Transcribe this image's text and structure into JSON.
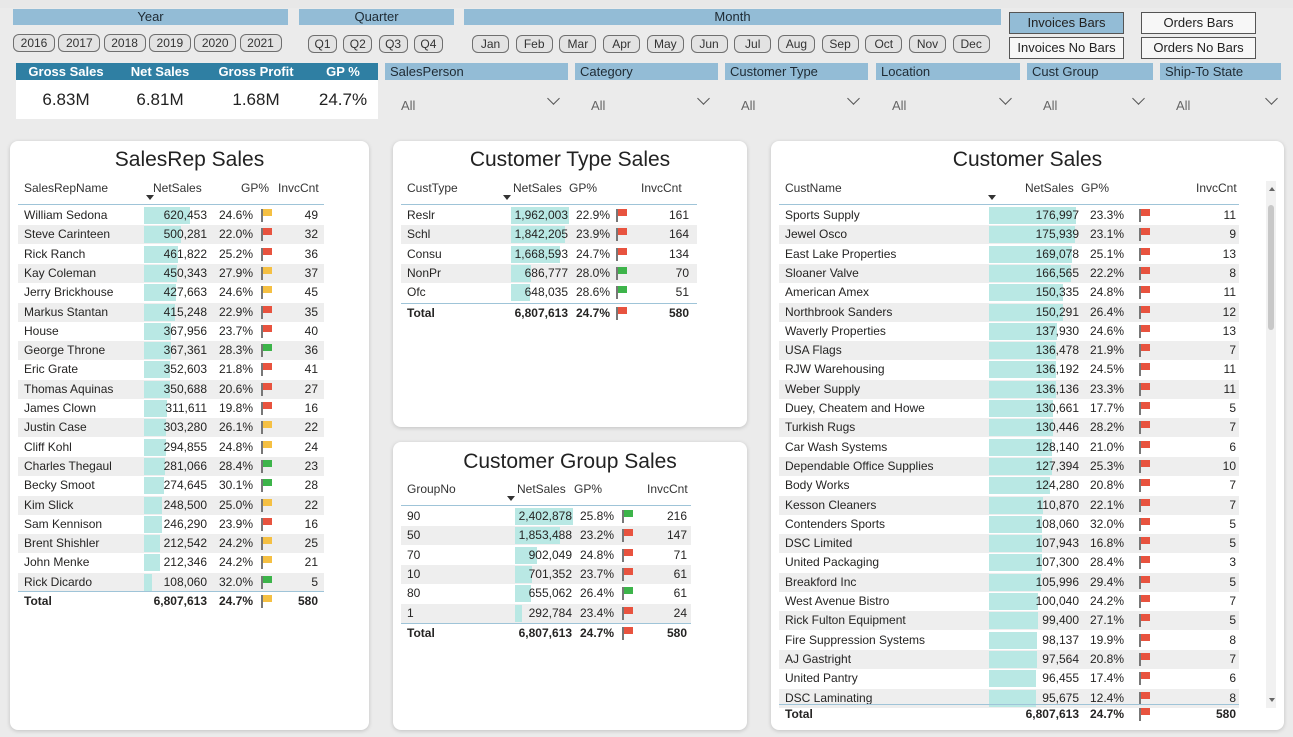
{
  "colors": {
    "green": "#3db44a",
    "yellow": "#f5c043",
    "red": "#e8533f",
    "bar": "#b9e8e4",
    "accent": "#2f7fa3"
  },
  "slicers": {
    "year": {
      "label": "Year",
      "items": [
        "2016",
        "2017",
        "2018",
        "2019",
        "2020",
        "2021"
      ]
    },
    "quarter": {
      "label": "Quarter",
      "items": [
        "Q1",
        "Q2",
        "Q3",
        "Q4"
      ]
    },
    "month": {
      "label": "Month",
      "items": [
        "Jan",
        "Feb",
        "Mar",
        "Apr",
        "May",
        "Jun",
        "Jul",
        "Aug",
        "Sep",
        "Oct",
        "Nov",
        "Dec"
      ]
    }
  },
  "toggles": {
    "invoices_bars": "Invoices Bars",
    "invoices_no_bars": "Invoices No Bars",
    "orders_bars": "Orders Bars",
    "orders_no_bars": "Orders No Bars"
  },
  "kpi": {
    "headers": [
      "Gross Sales",
      "Net Sales",
      "Gross Profit",
      "GP %"
    ],
    "values": [
      "6.83M",
      "6.81M",
      "1.68M",
      "24.7%"
    ]
  },
  "dropdowns": [
    {
      "label": "SalesPerson",
      "value": "All"
    },
    {
      "label": "Category",
      "value": "All"
    },
    {
      "label": "Customer Type",
      "value": "All"
    },
    {
      "label": "Location",
      "value": "All"
    },
    {
      "label": "Cust Group",
      "value": "All"
    },
    {
      "label": "Ship-To State",
      "value": "All"
    }
  ],
  "salesrep": {
    "title": "SalesRep Sales",
    "headers": [
      "SalesRepName",
      "NetSales",
      "GP%",
      "InvcCnt"
    ],
    "rows": [
      [
        "William Sedona",
        "620,453",
        "24.6%",
        "yellow",
        "49",
        620453
      ],
      [
        "Steve Carinteen",
        "500,281",
        "22.0%",
        "red",
        "32",
        500281
      ],
      [
        "Rick Ranch",
        "461,822",
        "25.2%",
        "red",
        "36",
        461822
      ],
      [
        "Kay Coleman",
        "450,343",
        "27.9%",
        "yellow",
        "37",
        450343
      ],
      [
        "Jerry Brickhouse",
        "427,663",
        "24.6%",
        "yellow",
        "45",
        427663
      ],
      [
        "Markus Stantan",
        "415,248",
        "22.9%",
        "red",
        "35",
        415248
      ],
      [
        "House",
        "367,956",
        "23.7%",
        "red",
        "40",
        367956
      ],
      [
        "George Throne",
        "367,361",
        "28.3%",
        "green",
        "36",
        367361
      ],
      [
        "Eric Grate",
        "352,603",
        "21.8%",
        "red",
        "41",
        352603
      ],
      [
        "Thomas Aquinas",
        "350,688",
        "20.6%",
        "red",
        "27",
        350688
      ],
      [
        "James Clown",
        "311,611",
        "19.8%",
        "red",
        "16",
        311611
      ],
      [
        "Justin Case",
        "303,280",
        "26.1%",
        "yellow",
        "22",
        303280
      ],
      [
        "Cliff Kohl",
        "294,855",
        "24.8%",
        "yellow",
        "24",
        294855
      ],
      [
        "Charles Thegaul",
        "281,066",
        "28.4%",
        "green",
        "23",
        281066
      ],
      [
        "Becky Smoot",
        "274,645",
        "30.1%",
        "green",
        "28",
        274645
      ],
      [
        "Kim Slick",
        "248,500",
        "25.0%",
        "yellow",
        "22",
        248500
      ],
      [
        "Sam Kennison",
        "246,290",
        "23.9%",
        "red",
        "16",
        246290
      ],
      [
        "Brent Shishler",
        "212,542",
        "24.2%",
        "yellow",
        "25",
        212542
      ],
      [
        "John Menke",
        "212,346",
        "24.2%",
        "yellow",
        "21",
        212346
      ],
      [
        "Rick Dicardo",
        "108,060",
        "32.0%",
        "green",
        "5",
        108060
      ]
    ],
    "total": [
      "Total",
      "6,807,613",
      "24.7%",
      "yellow",
      "580"
    ]
  },
  "custtype": {
    "title": "Customer Type Sales",
    "headers": [
      "CustType",
      "NetSales",
      "GP%",
      "InvcCnt"
    ],
    "rows": [
      [
        "Reslr",
        "1,962,003",
        "22.9%",
        "red",
        "161",
        1962003
      ],
      [
        "Schl",
        "1,842,205",
        "23.9%",
        "red",
        "164",
        1842205
      ],
      [
        "Consu",
        "1,668,593",
        "24.7%",
        "red",
        "134",
        1668593
      ],
      [
        "NonPr",
        "686,777",
        "28.0%",
        "green",
        "70",
        686777
      ],
      [
        "Ofc",
        "648,035",
        "28.6%",
        "green",
        "51",
        648035
      ]
    ],
    "total": [
      "Total",
      "6,807,613",
      "24.7%",
      "red",
      "580"
    ]
  },
  "custgroup": {
    "title": "Customer Group Sales",
    "headers": [
      "GroupNo",
      "NetSales",
      "GP%",
      "InvcCnt"
    ],
    "rows": [
      [
        "90",
        "2,402,878",
        "25.8%",
        "green",
        "216",
        2402878
      ],
      [
        "50",
        "1,853,488",
        "23.2%",
        "red",
        "147",
        1853488
      ],
      [
        "70",
        "902,049",
        "24.8%",
        "red",
        "71",
        902049
      ],
      [
        "10",
        "701,352",
        "23.7%",
        "red",
        "61",
        701352
      ],
      [
        "80",
        "655,062",
        "26.4%",
        "green",
        "61",
        655062
      ],
      [
        "1",
        "292,784",
        "23.4%",
        "red",
        "24",
        292784
      ]
    ],
    "total": [
      "Total",
      "6,807,613",
      "24.7%",
      "red",
      "580"
    ]
  },
  "customer": {
    "title": "Customer Sales",
    "headers": [
      "CustName",
      "NetSales",
      "GP%",
      "InvcCnt"
    ],
    "rows": [
      [
        "Sports Supply",
        "176,997",
        "23.3%",
        "red",
        "11",
        176997
      ],
      [
        "Jewel Osco",
        "175,939",
        "23.1%",
        "red",
        "9",
        175939
      ],
      [
        "East Lake Properties",
        "169,078",
        "25.1%",
        "red",
        "13",
        169078
      ],
      [
        "Sloaner Valve",
        "166,565",
        "22.2%",
        "red",
        "8",
        166565
      ],
      [
        "American Amex",
        "150,335",
        "24.8%",
        "red",
        "11",
        150335
      ],
      [
        "Northbrook Sanders",
        "150,291",
        "26.4%",
        "red",
        "12",
        150291
      ],
      [
        "Waverly Properties",
        "137,930",
        "24.6%",
        "red",
        "13",
        137930
      ],
      [
        "USA Flags",
        "136,478",
        "21.9%",
        "red",
        "7",
        136478
      ],
      [
        "RJW Warehousing",
        "136,192",
        "24.5%",
        "red",
        "11",
        136192
      ],
      [
        "Weber Supply",
        "136,136",
        "23.3%",
        "red",
        "11",
        136136
      ],
      [
        "Duey, Cheatem and Howe",
        "130,661",
        "17.7%",
        "red",
        "5",
        130661
      ],
      [
        "Turkish Rugs",
        "130,446",
        "28.2%",
        "red",
        "7",
        130446
      ],
      [
        "Car Wash Systems",
        "128,140",
        "21.0%",
        "red",
        "6",
        128140
      ],
      [
        "Dependable Office Supplies",
        "127,394",
        "25.3%",
        "red",
        "10",
        127394
      ],
      [
        "Body Works",
        "124,280",
        "20.8%",
        "red",
        "7",
        124280
      ],
      [
        "Kesson Cleaners",
        "110,870",
        "22.1%",
        "red",
        "7",
        110870
      ],
      [
        "Contenders Sports",
        "108,060",
        "32.0%",
        "red",
        "5",
        108060
      ],
      [
        "DSC Limited",
        "107,943",
        "16.8%",
        "red",
        "5",
        107943
      ],
      [
        "United Packaging",
        "107,300",
        "28.4%",
        "red",
        "3",
        107300
      ],
      [
        "Breakford Inc",
        "105,996",
        "29.4%",
        "red",
        "5",
        105996
      ],
      [
        "West Avenue Bistro",
        "100,040",
        "24.2%",
        "red",
        "7",
        100040
      ],
      [
        "Rick Fulton Equipment",
        "99,400",
        "27.1%",
        "red",
        "5",
        99400
      ],
      [
        "Fire Suppression Systems",
        "98,137",
        "19.9%",
        "red",
        "8",
        98137
      ],
      [
        "AJ Gastright",
        "97,564",
        "20.8%",
        "red",
        "7",
        97564
      ],
      [
        "United Pantry",
        "96,455",
        "17.4%",
        "red",
        "6",
        96455
      ],
      [
        "DSC Laminating",
        "95,675",
        "12.4%",
        "red",
        "8",
        95675
      ]
    ],
    "total": [
      "Total",
      "6,807,613",
      "24.7%",
      "red",
      "580"
    ]
  }
}
